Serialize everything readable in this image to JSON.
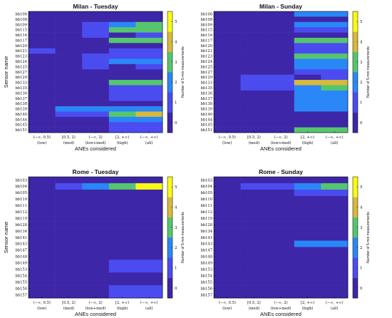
{
  "colors": {
    "scale": [
      "#3e26a8",
      "#4b4cf0",
      "#2a87f7",
      "#16b7c4",
      "#55c66e",
      "#d7ba3b",
      "#f8fa14"
    ],
    "frame": "#000000"
  },
  "chart_data": [
    {
      "type": "heatmap",
      "title": "Milan - Tuesday",
      "xlabel": "ANEs considered",
      "ylabel": "Sensor name",
      "colorbar_label": "Number of 5-min measurements",
      "colorbar_ticks": [
        "0",
        "1",
        "2",
        "3",
        "4",
        "5"
      ],
      "colorbar_range": [
        -0.5,
        5.5
      ],
      "colorbar_levels": 6,
      "x_intervals": [
        "(−∞, 0.5)",
        "[0.5, 2)",
        "(−∞, 2)",
        "[2, +∞)",
        "(−∞, +∞)"
      ],
      "x_groups": [
        "(low)",
        "(med)",
        "(low+med)",
        "(high)",
        "(all)"
      ],
      "rows": [
        "bb106",
        "bb108",
        "bb109",
        "bb115",
        "bb116",
        "bb117",
        "bb120",
        "bb121",
        "bb123",
        "bb124",
        "bb125",
        "bb127",
        "bb129",
        "bb133",
        "bb135",
        "bb136",
        "bb137",
        "bb138",
        "bb139",
        "bb140",
        "bb144",
        "bb145",
        "bb151"
      ],
      "values": [
        [
          0,
          0,
          0,
          0,
          0
        ],
        [
          0,
          0,
          0,
          0,
          0
        ],
        [
          0,
          0,
          1,
          2,
          3
        ],
        [
          0,
          0,
          1,
          3,
          3
        ],
        [
          0,
          0,
          1,
          0,
          1
        ],
        [
          0,
          0,
          0,
          3,
          3
        ],
        [
          0,
          0,
          0,
          0,
          0
        ],
        [
          1,
          0,
          0,
          1,
          1
        ],
        [
          0,
          0,
          1,
          1,
          1
        ],
        [
          0,
          0,
          1,
          2,
          2
        ],
        [
          0,
          0,
          1,
          0,
          1
        ],
        [
          0,
          0,
          0,
          0,
          0
        ],
        [
          0,
          0,
          0,
          0,
          0
        ],
        [
          0,
          0,
          0,
          3,
          3
        ],
        [
          0,
          0,
          0,
          1,
          1
        ],
        [
          0,
          0,
          0,
          1,
          1
        ],
        [
          0,
          0,
          0,
          1,
          1
        ],
        [
          0,
          0,
          0,
          0,
          0
        ],
        [
          0,
          2,
          2,
          2,
          2
        ],
        [
          0,
          1,
          1,
          3,
          4
        ],
        [
          0,
          0,
          0,
          2,
          2
        ],
        [
          0,
          0,
          0,
          1,
          1
        ],
        [
          0,
          0,
          0,
          1,
          1
        ]
      ]
    },
    {
      "type": "heatmap",
      "title": "Milan - Sunday",
      "xlabel": "ANEs considered",
      "ylabel": "",
      "colorbar_label": "Number of 5-min measurements",
      "colorbar_ticks": [
        "0",
        "1",
        "2",
        "3",
        "4",
        "5"
      ],
      "colorbar_range": [
        -0.5,
        5.5
      ],
      "colorbar_levels": 6,
      "x_intervals": [
        "(−∞, 0.5)",
        "[0.5, 2)",
        "(−∞, 2)",
        "[2, +∞)",
        "(−∞, +∞)"
      ],
      "x_groups": [
        "(low)",
        "(med)",
        "(low+med)",
        "(high)",
        "(all)"
      ],
      "rows": [
        "bb106",
        "bb108",
        "bb109",
        "bb115",
        "bb116",
        "bb117",
        "bb120",
        "bb121",
        "bb123",
        "bb124",
        "bb125",
        "bb127",
        "bb129",
        "bb133",
        "bb135",
        "bb136",
        "bb137",
        "bb138",
        "bb139",
        "bb140",
        "bb144",
        "bb145",
        "bb151"
      ],
      "values": [
        [
          0,
          0,
          0,
          2,
          2
        ],
        [
          0,
          0,
          0,
          0,
          0
        ],
        [
          0,
          0,
          0,
          2,
          2
        ],
        [
          0,
          0,
          0,
          1,
          1
        ],
        [
          0,
          0,
          0,
          0,
          0
        ],
        [
          0,
          0,
          0,
          3,
          3
        ],
        [
          0,
          0,
          0,
          1,
          1
        ],
        [
          0,
          0,
          0,
          1,
          1
        ],
        [
          0,
          0,
          0,
          3,
          3
        ],
        [
          0,
          0,
          0,
          2,
          2
        ],
        [
          0,
          0,
          0,
          2,
          2
        ],
        [
          0,
          0,
          0,
          1,
          1
        ],
        [
          0,
          1,
          1,
          0,
          1
        ],
        [
          0,
          1,
          1,
          4,
          4
        ],
        [
          0,
          1,
          1,
          2,
          3
        ],
        [
          0,
          0,
          0,
          2,
          2
        ],
        [
          0,
          0,
          0,
          2,
          2
        ],
        [
          0,
          0,
          0,
          2,
          2
        ],
        [
          0,
          0,
          0,
          2,
          2
        ],
        [
          0,
          0,
          0,
          0,
          0
        ],
        [
          0,
          0,
          0,
          0,
          0
        ],
        [
          0,
          0,
          0,
          0,
          0
        ],
        [
          0,
          0,
          0,
          3,
          3
        ]
      ]
    },
    {
      "type": "heatmap",
      "title": "Rome - Tuesday",
      "xlabel": "ANEs considered",
      "ylabel": "Sensor name",
      "colorbar_label": "Number of 5-min measurements",
      "colorbar_ticks": [
        "0",
        "1",
        "2",
        "3",
        "4",
        "5"
      ],
      "colorbar_range": [
        -0.5,
        5.5
      ],
      "colorbar_levels": 6,
      "x_intervals": [
        "(−∞, 0.5)",
        "[0.5, 2)",
        "(−∞, 2)",
        "[2, +∞)",
        "(−∞, +∞)"
      ],
      "x_groups": [
        "(low)",
        "(med)",
        "(low+med)",
        "(high)",
        "(all)"
      ],
      "rows": [
        "bb103",
        "bb104",
        "bb105",
        "bb110",
        "bb111",
        "bb112",
        "bb119",
        "bb128",
        "bb134",
        "bb141",
        "bb143",
        "bb147",
        "bb148",
        "bb149",
        "bb153",
        "bb154",
        "bb155",
        "bb156",
        "bb157"
      ],
      "values": [
        [
          0,
          0,
          0,
          0,
          0
        ],
        [
          0,
          1,
          2,
          3,
          5
        ],
        [
          0,
          0,
          0,
          0,
          0
        ],
        [
          0,
          0,
          0,
          0,
          0
        ],
        [
          0,
          0,
          0,
          0,
          0
        ],
        [
          0,
          0,
          0,
          0,
          0
        ],
        [
          0,
          0,
          0,
          0,
          0
        ],
        [
          0,
          0,
          0,
          0,
          0
        ],
        [
          0,
          0,
          0,
          0,
          0
        ],
        [
          0,
          0,
          0,
          0,
          0
        ],
        [
          0,
          0,
          0,
          0,
          0
        ],
        [
          0,
          0,
          0,
          0,
          0
        ],
        [
          0,
          0,
          0,
          0,
          0
        ],
        [
          0,
          0,
          0,
          1,
          1
        ],
        [
          0,
          0,
          0,
          1,
          1
        ],
        [
          0,
          0,
          0,
          0,
          0
        ],
        [
          0,
          0,
          0,
          0,
          0
        ],
        [
          0,
          0,
          0,
          1,
          1
        ],
        [
          0,
          0,
          0,
          1,
          1
        ]
      ]
    },
    {
      "type": "heatmap",
      "title": "Rome - Sunday",
      "xlabel": "ANEs considered",
      "ylabel": "",
      "colorbar_label": "Number of 5-min measurements",
      "colorbar_ticks": [
        "0",
        "1",
        "2",
        "3",
        "4",
        "5"
      ],
      "colorbar_range": [
        -0.5,
        5.5
      ],
      "colorbar_levels": 6,
      "x_intervals": [
        "(−∞, 0.5)",
        "[0.5, 2)",
        "(−∞, 2)",
        "[2, +∞)",
        "(−∞, +∞)"
      ],
      "x_groups": [
        "(low)",
        "(med)",
        "(low+med)",
        "(high)",
        "(all)"
      ],
      "rows": [
        "bb103",
        "bb104",
        "bb105",
        "bb110",
        "bb111",
        "bb112",
        "bb119",
        "bb128",
        "bb134",
        "bb141",
        "bb143",
        "bb147",
        "bb148",
        "bb149",
        "bb153",
        "bb154",
        "bb155",
        "bb156",
        "bb157"
      ],
      "values": [
        [
          0,
          0,
          0,
          0,
          0
        ],
        [
          0,
          1,
          1,
          2,
          3
        ],
        [
          0,
          0,
          0,
          1,
          1
        ],
        [
          0,
          0,
          0,
          0,
          0
        ],
        [
          0,
          0,
          0,
          0,
          0
        ],
        [
          0,
          0,
          0,
          0,
          0
        ],
        [
          0,
          0,
          0,
          0,
          0
        ],
        [
          0,
          0,
          0,
          0,
          0
        ],
        [
          0,
          0,
          0,
          0,
          0
        ],
        [
          0,
          0,
          0,
          0,
          0
        ],
        [
          0,
          0,
          0,
          2,
          2
        ],
        [
          0,
          0,
          0,
          0,
          0
        ],
        [
          0,
          0,
          0,
          0,
          0
        ],
        [
          0,
          0,
          0,
          0,
          0
        ],
        [
          0,
          0,
          0,
          0,
          0
        ],
        [
          0,
          0,
          0,
          0,
          0
        ],
        [
          0,
          0,
          0,
          0,
          0
        ],
        [
          0,
          0,
          0,
          0,
          0
        ],
        [
          0,
          0,
          0,
          0,
          0
        ]
      ]
    }
  ]
}
